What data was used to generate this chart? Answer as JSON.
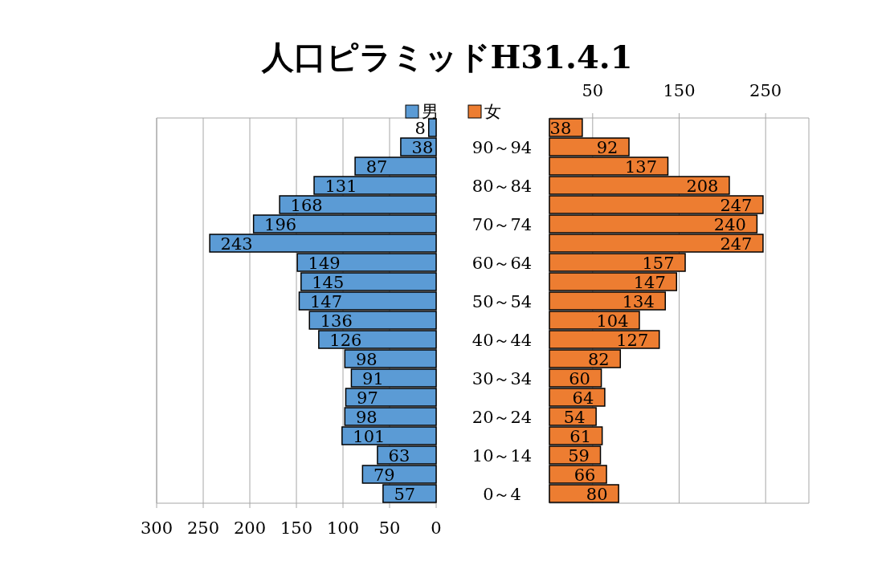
{
  "chart_data": [
    {
      "type": "bar",
      "orientation": "horizontal",
      "title": "人口ピラミッドH31.4.1",
      "series": [
        {
          "name": "男",
          "color": "#5b9bd5",
          "values": [
            8,
            38,
            87,
            131,
            168,
            196,
            243,
            149,
            145,
            147,
            136,
            126,
            98,
            91,
            97,
            98,
            101,
            63,
            79,
            57
          ]
        }
      ],
      "xlim": [
        300,
        0
      ],
      "xticks": [
        300,
        250,
        200,
        150,
        100,
        50,
        0
      ],
      "grid": "x",
      "legend": "top",
      "data_labels": true,
      "tick_labels": "x"
    },
    {
      "type": "bar",
      "orientation": "horizontal",
      "categories": [
        null,
        "90～94",
        null,
        "80～84",
        null,
        "70～74",
        null,
        "60～64",
        null,
        "50～54",
        null,
        "40～44",
        null,
        "30～34",
        null,
        "20～24",
        null,
        "10～14",
        null,
        "0～4"
      ],
      "series": [
        {
          "name": "女",
          "color": "#ed7d31",
          "values": [
            38,
            92,
            137,
            208,
            247,
            240,
            247,
            157,
            147,
            134,
            104,
            127,
            82,
            60,
            64,
            54,
            61,
            59,
            66,
            80
          ]
        }
      ],
      "xlim": [
        0,
        300
      ],
      "xticks": [
        50,
        150,
        250
      ],
      "grid": "x",
      "legend": "top",
      "data_labels": true
    }
  ]
}
